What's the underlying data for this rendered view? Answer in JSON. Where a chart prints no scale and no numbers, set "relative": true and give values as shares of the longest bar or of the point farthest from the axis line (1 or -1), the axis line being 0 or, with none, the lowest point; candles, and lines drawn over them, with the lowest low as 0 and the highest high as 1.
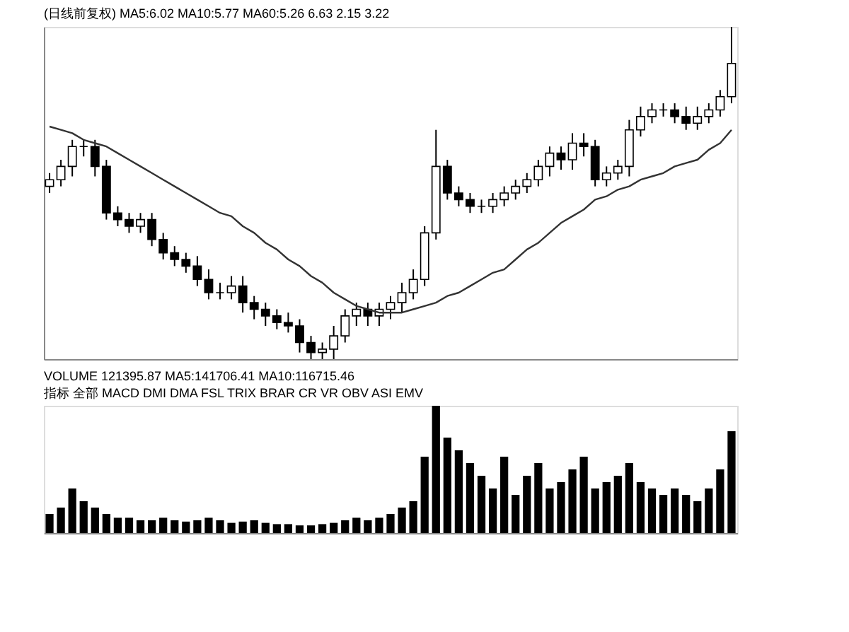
{
  "chart_data": [
    {
      "type": "candlestick",
      "title": "(日线前复权)",
      "relative": true,
      "color": "#000000",
      "tick_labels": false,
      "grid": false,
      "categories": [
        null,
        null,
        null,
        null,
        null,
        null,
        null,
        null,
        null,
        null,
        null,
        null,
        null,
        null,
        null,
        null,
        null,
        null,
        null,
        null,
        null,
        null,
        null,
        null,
        null,
        null,
        null,
        null,
        null,
        null,
        null,
        null,
        null,
        null,
        null,
        null,
        null,
        null,
        null,
        null,
        null,
        null,
        null,
        null,
        null,
        null,
        null,
        null,
        null,
        null,
        null,
        null,
        null,
        null,
        null,
        null,
        null,
        null,
        null,
        null,
        null
      ],
      "ohlc": [
        [
          0.52,
          0.56,
          0.5,
          0.54
        ],
        [
          0.54,
          0.6,
          0.52,
          0.58
        ],
        [
          0.58,
          0.66,
          0.55,
          0.64
        ],
        [
          0.64,
          0.66,
          0.61,
          0.64
        ],
        [
          0.64,
          0.66,
          0.55,
          0.58
        ],
        [
          0.58,
          0.6,
          0.42,
          0.44
        ],
        [
          0.44,
          0.46,
          0.4,
          0.42
        ],
        [
          0.42,
          0.44,
          0.38,
          0.4
        ],
        [
          0.4,
          0.44,
          0.38,
          0.42
        ],
        [
          0.42,
          0.44,
          0.34,
          0.36
        ],
        [
          0.36,
          0.38,
          0.3,
          0.32
        ],
        [
          0.32,
          0.34,
          0.28,
          0.3
        ],
        [
          0.3,
          0.32,
          0.26,
          0.28
        ],
        [
          0.28,
          0.31,
          0.22,
          0.24
        ],
        [
          0.24,
          0.27,
          0.18,
          0.2
        ],
        [
          0.2,
          0.23,
          0.18,
          0.2
        ],
        [
          0.2,
          0.25,
          0.18,
          0.22
        ],
        [
          0.22,
          0.25,
          0.14,
          0.17
        ],
        [
          0.17,
          0.19,
          0.12,
          0.15
        ],
        [
          0.15,
          0.17,
          0.1,
          0.13
        ],
        [
          0.13,
          0.15,
          0.09,
          0.11
        ],
        [
          0.11,
          0.14,
          0.08,
          0.1
        ],
        [
          0.1,
          0.12,
          0.02,
          0.05
        ],
        [
          0.05,
          0.07,
          0,
          0.02
        ],
        [
          0.02,
          0.05,
          0.0,
          0.03
        ],
        [
          0.03,
          0.1,
          0.0,
          0.07
        ],
        [
          0.07,
          0.15,
          0.05,
          0.13
        ],
        [
          0.13,
          0.17,
          0.1,
          0.15
        ],
        [
          0.15,
          0.17,
          0.1,
          0.13
        ],
        [
          0.13,
          0.17,
          0.1,
          0.15
        ],
        [
          0.15,
          0.19,
          0.12,
          0.17
        ],
        [
          0.17,
          0.23,
          0.14,
          0.2
        ],
        [
          0.2,
          0.27,
          0.18,
          0.24
        ],
        [
          0.24,
          0.4,
          0.22,
          0.38
        ],
        [
          0.38,
          0.69,
          0.36,
          0.58
        ],
        [
          0.58,
          0.6,
          0.48,
          0.5
        ],
        [
          0.5,
          0.52,
          0.46,
          0.48
        ],
        [
          0.48,
          0.5,
          0.44,
          0.46
        ],
        [
          0.46,
          0.48,
          0.44,
          0.46
        ],
        [
          0.46,
          0.5,
          0.44,
          0.48
        ],
        [
          0.48,
          0.52,
          0.46,
          0.5
        ],
        [
          0.5,
          0.54,
          0.48,
          0.52
        ],
        [
          0.52,
          0.56,
          0.5,
          0.54
        ],
        [
          0.54,
          0.6,
          0.52,
          0.58
        ],
        [
          0.58,
          0.64,
          0.55,
          0.62
        ],
        [
          0.62,
          0.64,
          0.57,
          0.6
        ],
        [
          0.6,
          0.68,
          0.57,
          0.65
        ],
        [
          0.65,
          0.68,
          0.61,
          0.64
        ],
        [
          0.64,
          0.66,
          0.52,
          0.54
        ],
        [
          0.54,
          0.58,
          0.52,
          0.56
        ],
        [
          0.56,
          0.6,
          0.54,
          0.58
        ],
        [
          0.58,
          0.72,
          0.55,
          0.69
        ],
        [
          0.69,
          0.76,
          0.67,
          0.73
        ],
        [
          0.73,
          0.77,
          0.71,
          0.75
        ],
        [
          0.75,
          0.77,
          0.73,
          0.75
        ],
        [
          0.75,
          0.77,
          0.71,
          0.73
        ],
        [
          0.73,
          0.76,
          0.69,
          0.71
        ],
        [
          0.71,
          0.76,
          0.69,
          0.73
        ],
        [
          0.73,
          0.77,
          0.71,
          0.75
        ],
        [
          0.75,
          0.81,
          0.73,
          0.79
        ],
        [
          0.79,
          1,
          0.77,
          0.89
        ]
      ],
      "series": [
        {
          "type": "line",
          "color": "#333333",
          "values": [
            0.7,
            0.69,
            0.68,
            0.66,
            0.65,
            0.64,
            0.62,
            0.6,
            0.58,
            0.56,
            0.54,
            0.52,
            0.5,
            0.48,
            0.46,
            0.44,
            0.43,
            0.4,
            0.38,
            0.35,
            0.33,
            0.3,
            0.28,
            0.25,
            0.23,
            0.2,
            0.18,
            0.16,
            0.15,
            0.14,
            0.14,
            0.14,
            0.15,
            0.16,
            0.17,
            0.19,
            0.2,
            0.22,
            0.24,
            0.26,
            0.27,
            0.3,
            0.33,
            0.35,
            0.38,
            0.41,
            0.43,
            0.45,
            0.48,
            0.49,
            0.51,
            0.52,
            0.54,
            0.55,
            0.56,
            0.58,
            0.59,
            0.6,
            0.63,
            0.65,
            0.69
          ]
        }
      ],
      "annotations": [
        "MA5:6.02",
        "MA10:5.77",
        "MA60:5.26",
        "6.63",
        "2.15",
        "3.22"
      ]
    },
    {
      "type": "bar",
      "title": "VOLUME 121395.87 MA5:141706.41 MA10:116715.46",
      "relative": true,
      "color": "#000000",
      "tick_labels": false,
      "grid": false,
      "categories": [
        null,
        null,
        null,
        null,
        null,
        null,
        null,
        null,
        null,
        null,
        null,
        null,
        null,
        null,
        null,
        null,
        null,
        null,
        null,
        null,
        null,
        null,
        null,
        null,
        null,
        null,
        null,
        null,
        null,
        null,
        null,
        null,
        null,
        null,
        null,
        null,
        null,
        null,
        null,
        null,
        null,
        null,
        null,
        null,
        null,
        null,
        null,
        null,
        null,
        null,
        null,
        null,
        null,
        null,
        null,
        null,
        null,
        null,
        null,
        null,
        null
      ],
      "values": [
        0.15,
        0.2,
        0.35,
        0.25,
        0.2,
        0.15,
        0.12,
        0.12,
        0.1,
        0.1,
        0.12,
        0.1,
        0.09,
        0.1,
        0.12,
        0.1,
        0.08,
        0.09,
        0.1,
        0.08,
        0.07,
        0.07,
        0.06,
        0.06,
        0.07,
        0.08,
        0.1,
        0.12,
        0.1,
        0.12,
        0.15,
        0.2,
        0.25,
        0.6,
        1.0,
        0.75,
        0.65,
        0.55,
        0.45,
        0.35,
        0.6,
        0.3,
        0.45,
        0.55,
        0.35,
        0.4,
        0.5,
        0.6,
        0.35,
        0.4,
        0.45,
        0.55,
        0.4,
        0.35,
        0.3,
        0.35,
        0.3,
        0.25,
        0.35,
        0.5,
        0.8
      ],
      "annotations": [
        "指标 全部 MACD DMI DMA FSL TRIX BRAR CR VR OBV ASI EMV"
      ]
    }
  ]
}
